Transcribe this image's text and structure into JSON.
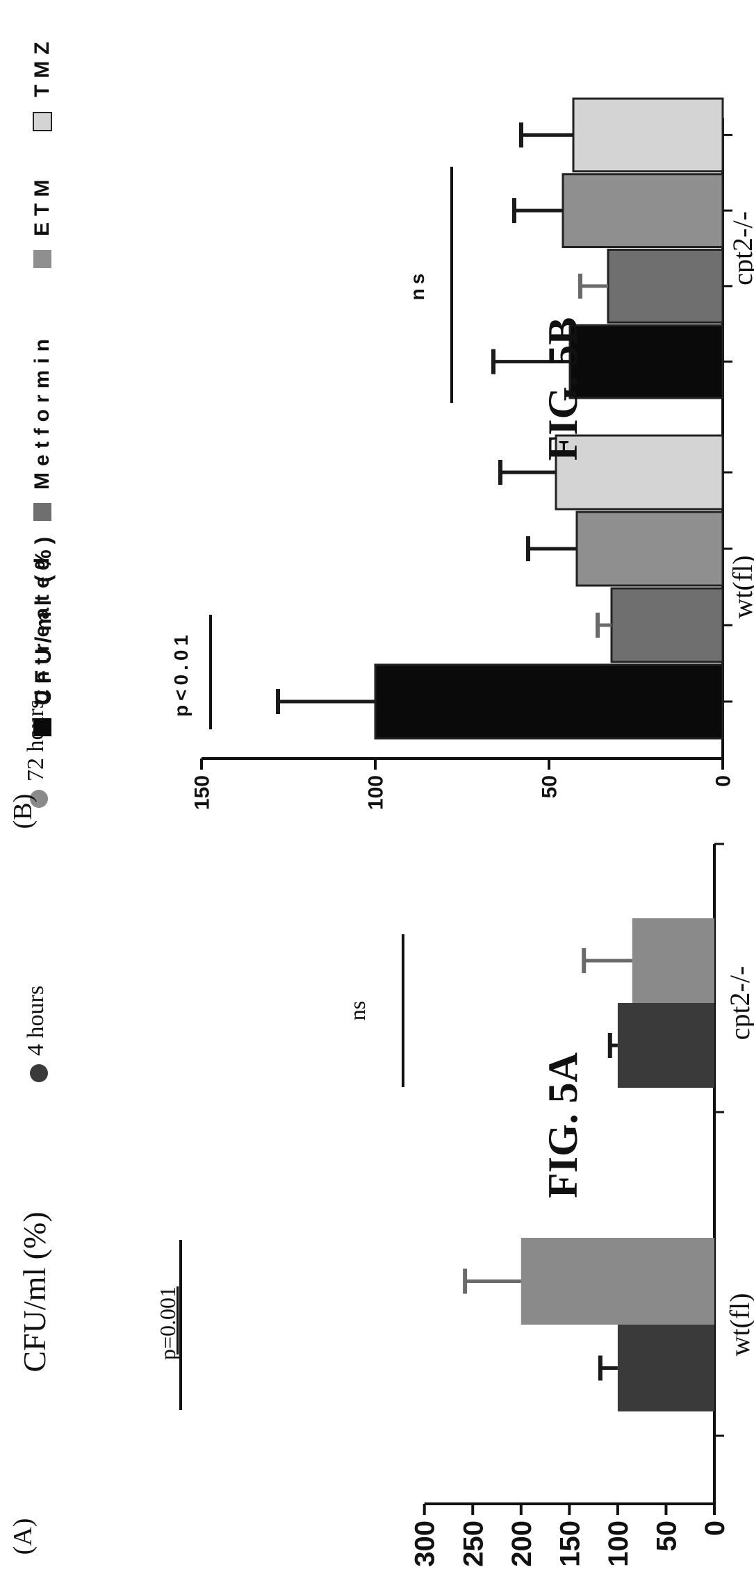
{
  "chart_data": [
    {
      "panel_label": "(A)",
      "figure_caption": "FIG. 5A",
      "type": "bar",
      "categories": [
        "wt(fl)",
        "cpt2-/-"
      ],
      "series": [
        {
          "name": "4 hours",
          "color": "#3a3a3a",
          "values": [
            100,
            100
          ],
          "errors": [
            18,
            8
          ]
        },
        {
          "name": "72 hours",
          "color": "#8a8a8a",
          "values": [
            200,
            85
          ],
          "errors": [
            58,
            50
          ]
        }
      ],
      "ylabel": "CFU/ml (%)",
      "ylim": [
        0,
        300
      ],
      "yticks": [
        "0",
        "50",
        "100",
        "150",
        "200",
        "250",
        "300"
      ],
      "annotations": [
        "p=0.001",
        "ns"
      ],
      "legend_position": "top",
      "grid": false
    },
    {
      "panel_label": "(B)",
      "figure_caption": "FIG. 5B",
      "type": "bar",
      "categories": [
        "wt(fl)",
        "cpt2-/-"
      ],
      "series": [
        {
          "name": "Untreated",
          "color": "#0a0a0a",
          "values": [
            100,
            44
          ],
          "errors": [
            28,
            22
          ]
        },
        {
          "name": "Metformin",
          "color": "#6f6f6f",
          "values": [
            32,
            33
          ],
          "errors": [
            4,
            8
          ]
        },
        {
          "name": "ETM",
          "color": "#8f8f8f",
          "values": [
            42,
            46
          ],
          "errors": [
            14,
            14
          ]
        },
        {
          "name": "TMZ",
          "color": "#d4d4d4",
          "values": [
            48,
            43
          ],
          "errors": [
            16,
            15
          ]
        }
      ],
      "ylabel": "CFU/ml (%)",
      "ylim": [
        0,
        150
      ],
      "yticks": [
        "0",
        "50",
        "100",
        "150"
      ],
      "annotations": [
        "p<0.01",
        "ns"
      ],
      "legend_position": "top",
      "grid": false
    }
  ]
}
